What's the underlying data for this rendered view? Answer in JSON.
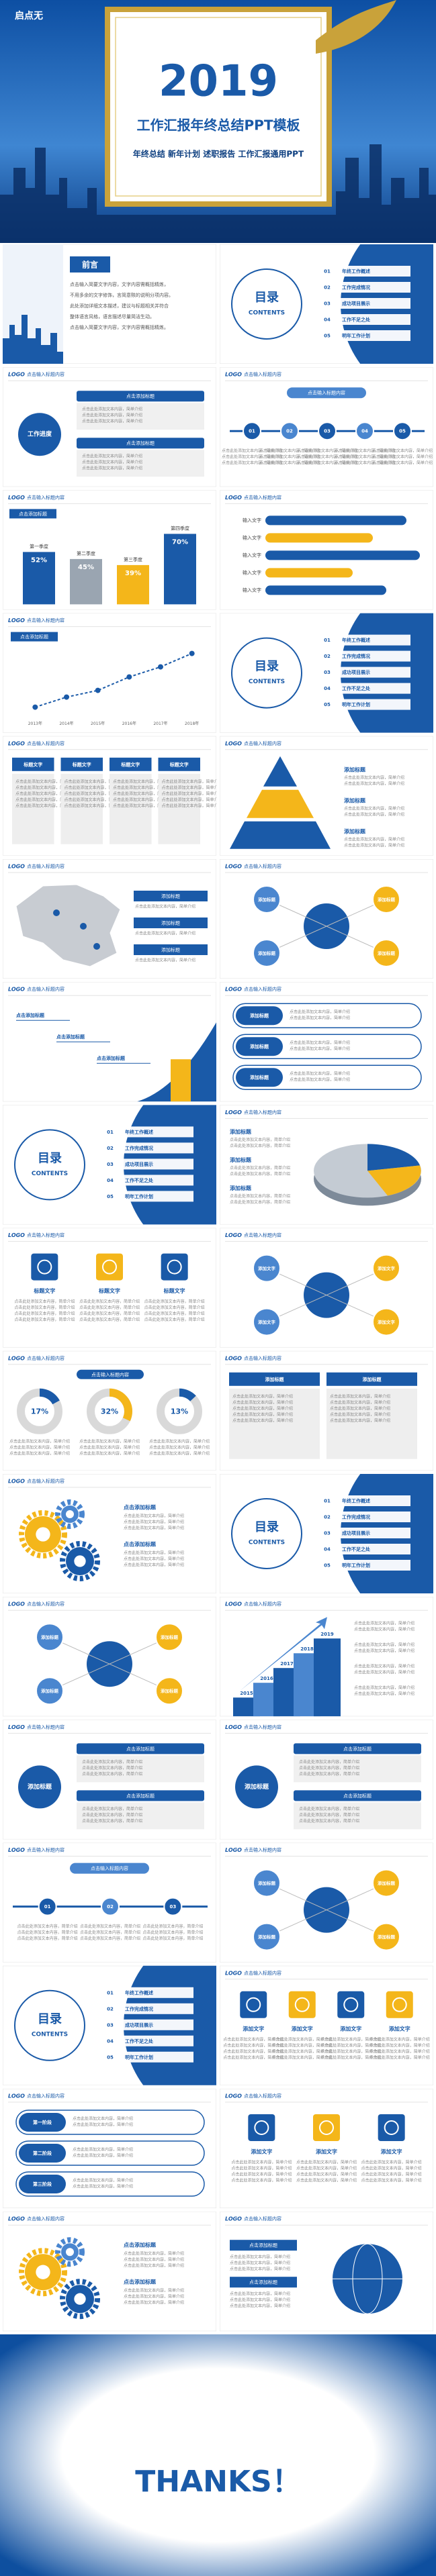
{
  "cover": {
    "logo": "启点无",
    "year": "2019",
    "title": "工作汇报年终总结PPT模板",
    "subtitle": "年终总结 新年计划 述职报告 工作汇报通用PPT"
  },
  "logo": "LOGO",
  "body": "点击此处添加文本内容，简单介绍",
  "slides": [
    {
      "kind": "preface",
      "heading": "前言",
      "lines": [
        "点击输入简要文字内容，文字内容需概括精炼，",
        "不用多余的文字修饰，言简意赅的说明分项内容。",
        "此处添加详细文本描述，建议与标题相关并符合",
        "整体语言风格，语言描述尽量简洁生动。",
        "点击输入简要文字内容，文字内容需概括精炼。"
      ]
    },
    {
      "kind": "toc",
      "heading": "目录",
      "sub": "CONTENTS",
      "items": [
        {
          "num": "01",
          "label": "年终工作概述"
        },
        {
          "num": "02",
          "label": "工作完成情况"
        },
        {
          "num": "03",
          "label": "成功项目展示"
        },
        {
          "num": "04",
          "label": "工作不足之处"
        },
        {
          "num": "05",
          "label": "明年工作计划"
        }
      ]
    },
    {
      "kind": "process",
      "title": "点击输入标题内容",
      "label": "工作进度",
      "boxes": [
        "点击添加标题",
        "点击添加标题"
      ]
    },
    {
      "kind": "timeline",
      "title": "点击输入标题内容",
      "tag": "点击输入标题内容",
      "labels": [
        "01",
        "02",
        "03",
        "04",
        "05"
      ]
    },
    {
      "kind": "vbars",
      "title": "点击输入标题内容",
      "caption": "点击添加标题",
      "categories": [
        "第一季度",
        "第二季度",
        "第三季度",
        "第四季度"
      ],
      "values": [
        52,
        45,
        39,
        70
      ],
      "value_labels": [
        "52%",
        "45%",
        "39%",
        "70%"
      ]
    },
    {
      "kind": "hbars",
      "title": "点击输入标题内容",
      "categories": [
        "输入文字",
        "输入文字",
        "输入文字",
        "输入文字",
        "输入文字"
      ]
    },
    {
      "kind": "line",
      "title": "点击输入标题内容",
      "caption": "点击添加标题",
      "categories": [
        "2013年",
        "2014年",
        "2015年",
        "2016年",
        "2017年",
        "2018年"
      ]
    },
    {
      "kind": "toc",
      "heading": "目录",
      "sub": "CONTENTS",
      "items": [
        {
          "num": "01",
          "label": "年终工作概述"
        },
        {
          "num": "02",
          "label": "工作完成情况"
        },
        {
          "num": "03",
          "label": "成功项目展示"
        },
        {
          "num": "04",
          "label": "工作不足之处"
        },
        {
          "num": "05",
          "label": "明年工作计划"
        }
      ]
    },
    {
      "kind": "columns",
      "title": "点击输入标题内容",
      "labels": [
        "标题文字",
        "标题文字",
        "标题文字",
        "标题文字"
      ]
    },
    {
      "kind": "pyramid",
      "title": "点击输入标题内容",
      "labels": [
        "添加标题",
        "添加标题",
        "添加标题"
      ]
    },
    {
      "kind": "map",
      "title": "点击输入标题内容",
      "labels": [
        "添加标题",
        "添加标题",
        "添加标题"
      ]
    },
    {
      "kind": "circles",
      "title": "点击输入标题内容",
      "labels": [
        "添加标题",
        "添加标题",
        "添加标题",
        "添加标题"
      ]
    },
    {
      "kind": "rise",
      "title": "点击输入标题内容",
      "labels": [
        "点击添加标题",
        "点击添加标题",
        "点击添加标题"
      ]
    },
    {
      "kind": "list",
      "title": "点击输入标题内容",
      "labels": [
        "添加标题",
        "添加标题",
        "添加标题"
      ]
    },
    {
      "kind": "toc",
      "heading": "目录",
      "sub": "CONTENTS",
      "items": [
        {
          "num": "01",
          "label": "年终工作概述"
        },
        {
          "num": "02",
          "label": "工作完成情况"
        },
        {
          "num": "03",
          "label": "成功项目展示"
        },
        {
          "num": "04",
          "label": "工作不足之处"
        },
        {
          "num": "05",
          "label": "明年工作计划"
        }
      ]
    },
    {
      "kind": "pie3d",
      "title": "点击输入标题内容",
      "labels": [
        "添加标题",
        "添加标题",
        "添加标题"
      ]
    },
    {
      "kind": "icons",
      "title": "点击输入标题内容",
      "labels": [
        "标题文字",
        "标题文字",
        "标题文字"
      ]
    },
    {
      "kind": "circles",
      "title": "点击输入标题内容",
      "labels": [
        "添加文字",
        "添加文字",
        "添加文字",
        "添加文字"
      ]
    },
    {
      "kind": "pies",
      "title": "点击输入标题内容",
      "caption": "点击输入标题内容",
      "values": [
        17,
        32,
        13
      ],
      "value_labels": [
        "17%",
        "32%",
        "13%"
      ]
    },
    {
      "kind": "columns",
      "title": "点击输入标题内容",
      "labels": [
        "添加标题",
        "添加标题"
      ]
    },
    {
      "kind": "gears",
      "title": "点击输入标题内容",
      "labels": [
        "点击添加标题",
        "点击添加标题"
      ]
    },
    {
      "kind": "toc",
      "heading": "目录",
      "sub": "CONTENTS",
      "items": [
        {
          "num": "01",
          "label": "年终工作概述"
        },
        {
          "num": "02",
          "label": "工作完成情况"
        },
        {
          "num": "03",
          "label": "成功项目展示"
        },
        {
          "num": "04",
          "label": "工作不足之处"
        },
        {
          "num": "05",
          "label": "明年工作计划"
        }
      ]
    },
    {
      "kind": "circles",
      "title": "点击输入标题内容",
      "labels": [
        "添加标题",
        "添加标题",
        "添加标题",
        "添加标题"
      ]
    },
    {
      "kind": "stairs",
      "title": "点击输入标题内容",
      "labels": [
        "2015",
        "2016",
        "2017",
        "2018",
        "2019"
      ]
    },
    {
      "kind": "process",
      "title": "点击输入标题内容",
      "label": "添加标题",
      "boxes": [
        "点击添加标题",
        "点击添加标题"
      ]
    },
    {
      "kind": "process",
      "title": "点击输入标题内容",
      "label": "添加标题",
      "boxes": [
        "点击添加标题",
        "点击添加标题"
      ]
    },
    {
      "kind": "timeline",
      "title": "点击输入标题内容",
      "tag": "点击输入标题内容",
      "labels": [
        "01",
        "02",
        "03"
      ]
    },
    {
      "kind": "circles",
      "title": "点击输入标题内容",
      "labels": [
        "添加标题",
        "添加标题",
        "添加标题",
        "添加标题"
      ]
    },
    {
      "kind": "toc",
      "heading": "目录",
      "sub": "CONTENTS",
      "items": [
        {
          "num": "01",
          "label": "年终工作概述"
        },
        {
          "num": "02",
          "label": "工作完成情况"
        },
        {
          "num": "03",
          "label": "成功项目展示"
        },
        {
          "num": "04",
          "label": "工作不足之处"
        },
        {
          "num": "05",
          "label": "明年工作计划"
        }
      ]
    },
    {
      "kind": "icons",
      "title": "点击输入标题内容",
      "labels": [
        "添加文字",
        "添加文字",
        "添加文字",
        "添加文字"
      ]
    },
    {
      "kind": "list",
      "title": "点击输入标题内容",
      "labels": [
        "第一阶段",
        "第二阶段",
        "第三阶段"
      ]
    },
    {
      "kind": "icons",
      "title": "点击输入标题内容",
      "labels": [
        "添加文字",
        "添加文字",
        "添加文字"
      ]
    },
    {
      "kind": "gears",
      "title": "点击输入标题内容",
      "labels": [
        "点击添加标题",
        "点击添加标题"
      ]
    },
    {
      "kind": "globe",
      "title": "点击输入标题内容",
      "labels": [
        "点击添加标题",
        "点击添加标题"
      ]
    }
  ],
  "thanks": "THANKS！"
}
